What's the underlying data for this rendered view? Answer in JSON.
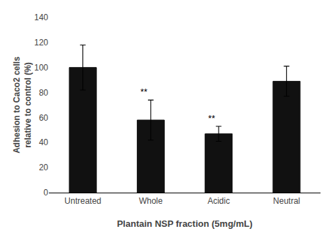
{
  "chart_data": {
    "type": "bar",
    "categories": [
      "Untreated",
      "Whole",
      "Acidic",
      "Neutral"
    ],
    "values": [
      100,
      58,
      47,
      89
    ],
    "errors": [
      18,
      16,
      6,
      12
    ],
    "color": "#111111",
    "annotations": [
      null,
      "**",
      "**",
      null
    ],
    "ylabel": "Adhesion to Caco2 cells\nrelative to control (%)",
    "xlabel": "Plantain NSP fraction (5mg/mL)",
    "ylim": [
      0,
      140
    ],
    "yticks": [
      0,
      20,
      40,
      60,
      80,
      100,
      120,
      140
    ],
    "grid": false
  }
}
